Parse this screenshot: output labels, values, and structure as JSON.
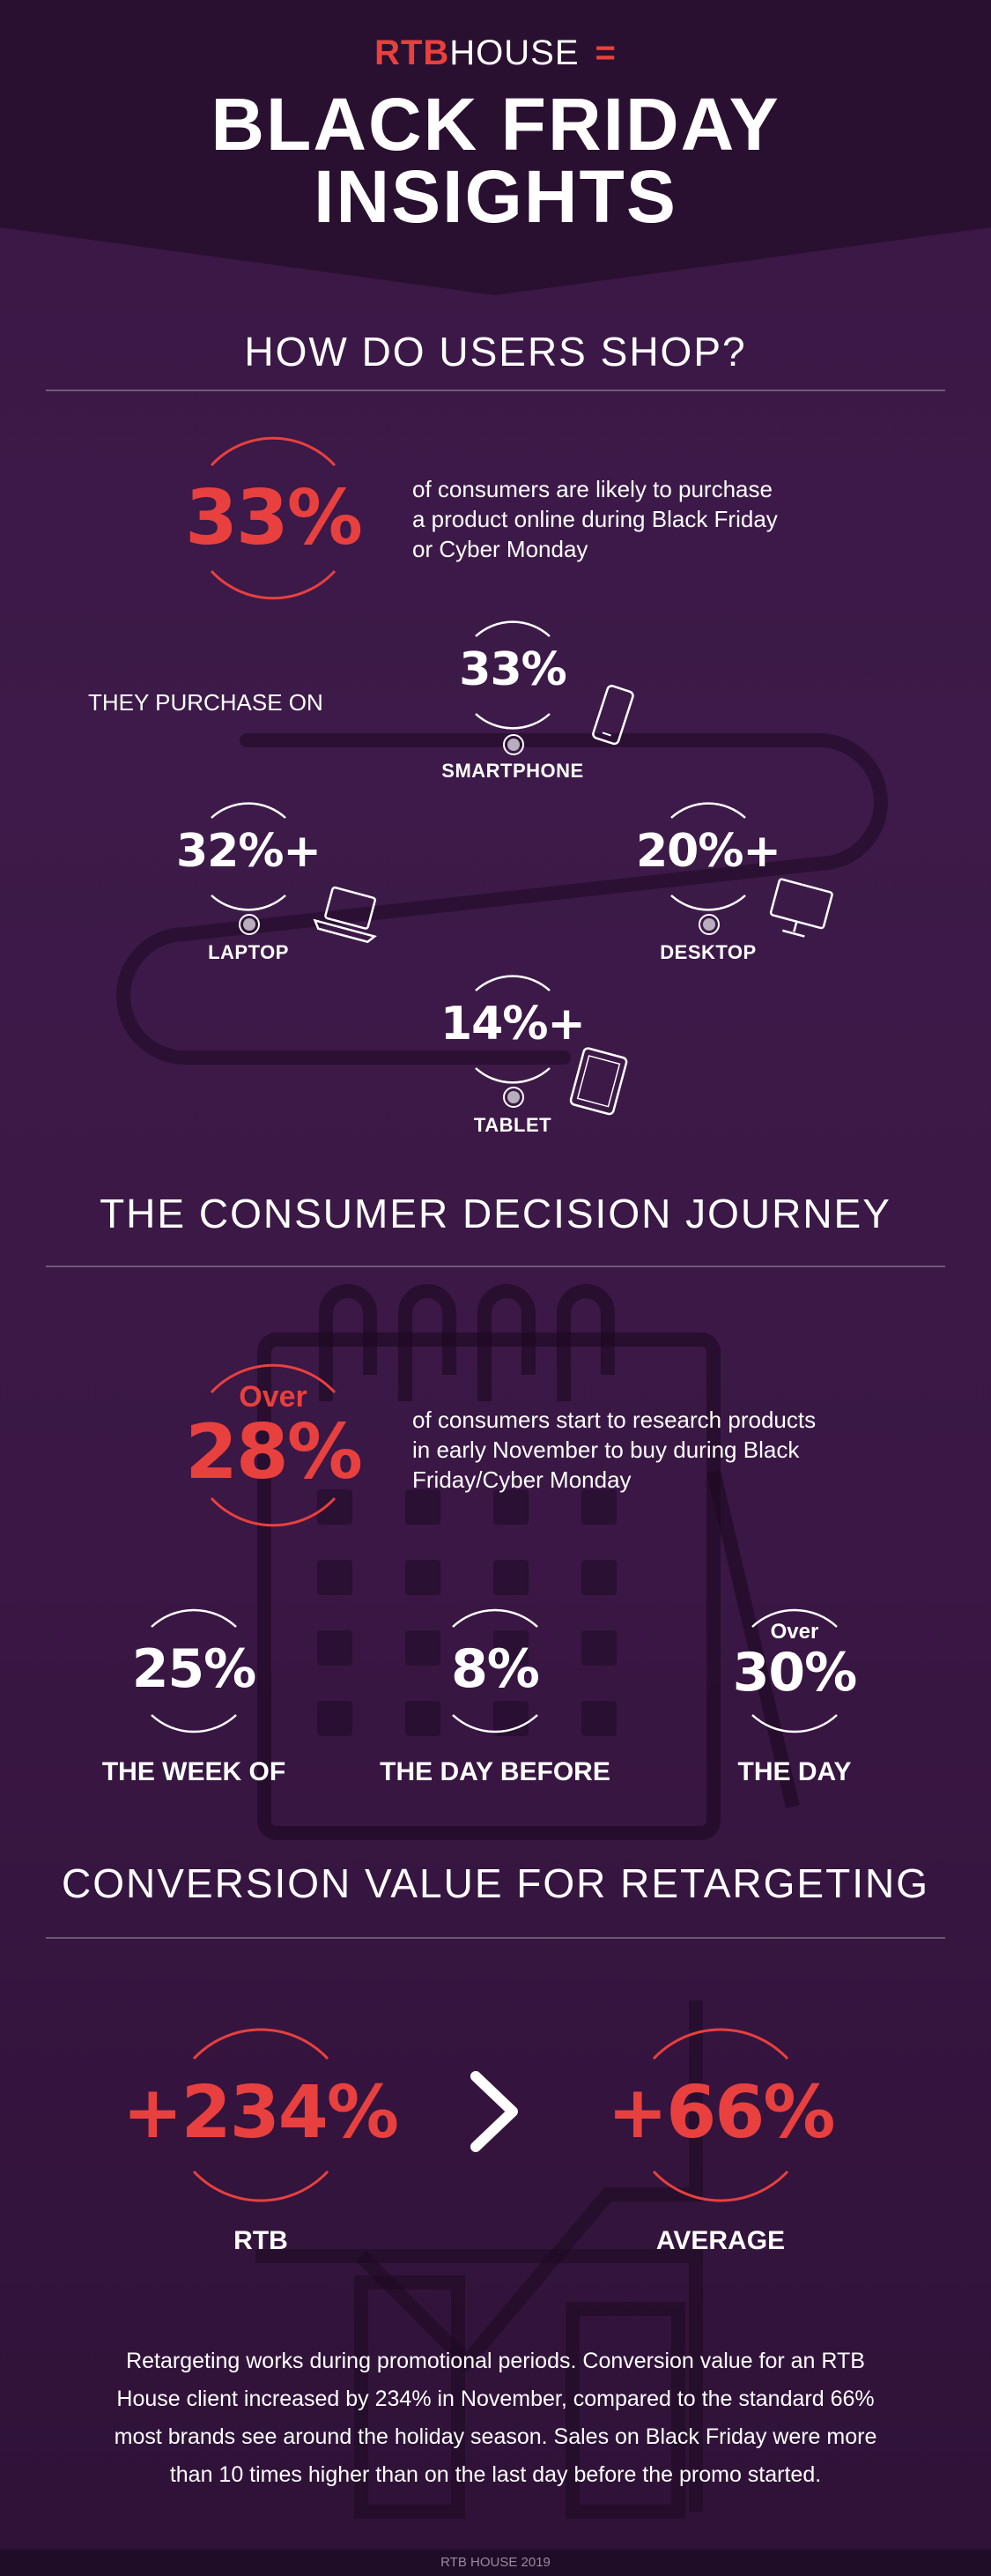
{
  "header": {
    "brand_rtb": "RTB",
    "brand_house": "HOUSE",
    "brand_mark": "=",
    "title_line1": "BLACK FRIDAY",
    "title_line2": "INSIGHTS"
  },
  "section1": {
    "title": "HOW DO USERS SHOP?",
    "headline_value": "33%",
    "headline_text_1": "of consumers are likely to purchase",
    "headline_text_2": "a product online during Black Friday",
    "headline_text_3": "or Cyber Monday",
    "purchase_on": "THEY PURCHASE ON",
    "devices": [
      {
        "value": "33%",
        "label": "SMARTPHONE",
        "icon": "smartphone-icon"
      },
      {
        "value": "32%+",
        "label": "LAPTOP",
        "icon": "laptop-icon"
      },
      {
        "value": "20%+",
        "label": "DESKTOP",
        "icon": "desktop-icon"
      },
      {
        "value": "14%+",
        "label": "TABLET",
        "icon": "tablet-icon"
      }
    ]
  },
  "section2": {
    "title": "THE CONSUMER DECISION JOURNEY",
    "headline_prefix": "Over",
    "headline_value": "28%",
    "headline_text_1": "of consumers start to research products",
    "headline_text_2": "in early November to buy during Black",
    "headline_text_3": "Friday/Cyber Monday",
    "stats": [
      {
        "prefix": "",
        "value": "25%",
        "label": "THE WEEK OF"
      },
      {
        "prefix": "",
        "value": "8%",
        "label": "THE DAY BEFORE"
      },
      {
        "prefix": "Over",
        "value": "30%",
        "label": "THE DAY"
      }
    ]
  },
  "section3": {
    "title": "CONVERSION VALUE FOR RETARGETING",
    "left_value": "+234%",
    "left_label": "RTB",
    "right_value": "+66%",
    "right_label": "AVERAGE",
    "comparator": "chevron-right-icon",
    "paragraph_1": "Retargeting works during promotional periods. Conversion value for an RTB",
    "paragraph_2": "House client increased by 234% in November, compared to the standard 66%",
    "paragraph_3": "most brands see around the holiday season. Sales on Black Friday were more",
    "paragraph_4": "than 10 times higher than on the last day before the promo started."
  },
  "footer": {
    "text": "RTB HOUSE 2019"
  },
  "colors": {
    "accent": "#e8403e",
    "background": "#3a1745",
    "header_dark": "#2a1030"
  }
}
